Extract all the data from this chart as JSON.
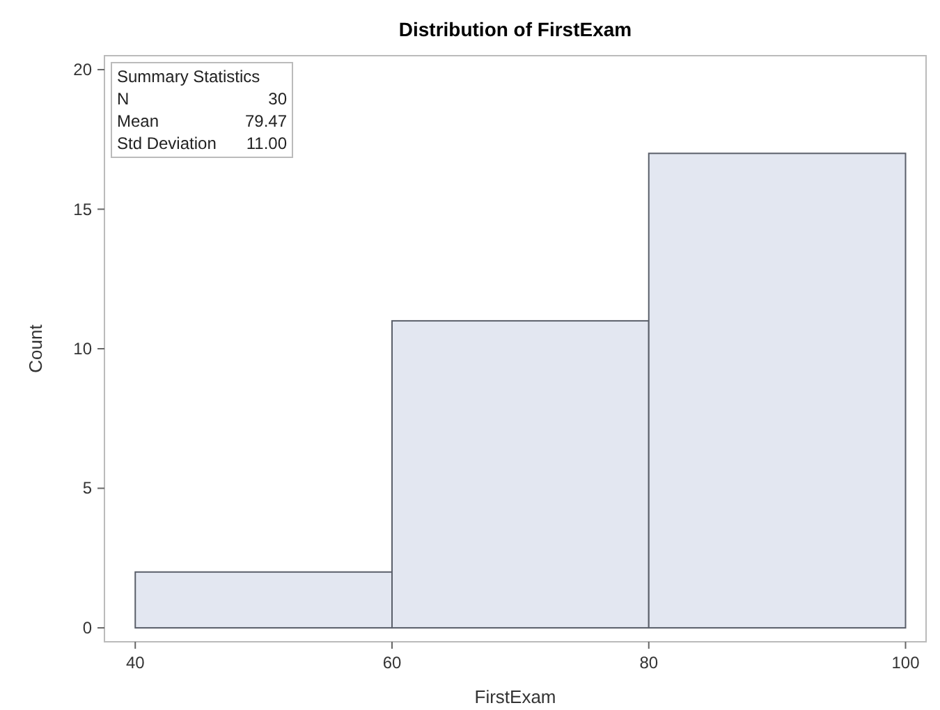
{
  "chart_data": {
    "type": "histogram",
    "title": "Distribution of FirstExam",
    "xlabel": "FirstExam",
    "ylabel": "Count",
    "bins": [
      40,
      60,
      80,
      100
    ],
    "values": [
      2,
      11,
      17
    ],
    "color": "#e3e7f1",
    "xlim": [
      37.6,
      101.6
    ],
    "xticks": [
      40,
      60,
      80,
      100
    ],
    "ylim": [
      -0.5,
      20.5
    ],
    "yticks": [
      0,
      5,
      10,
      15,
      20
    ],
    "grid": false,
    "annotations": [
      "Summary Statistics",
      "N",
      "30",
      "Mean",
      "79.47",
      "Std Deviation",
      "11.00"
    ]
  }
}
